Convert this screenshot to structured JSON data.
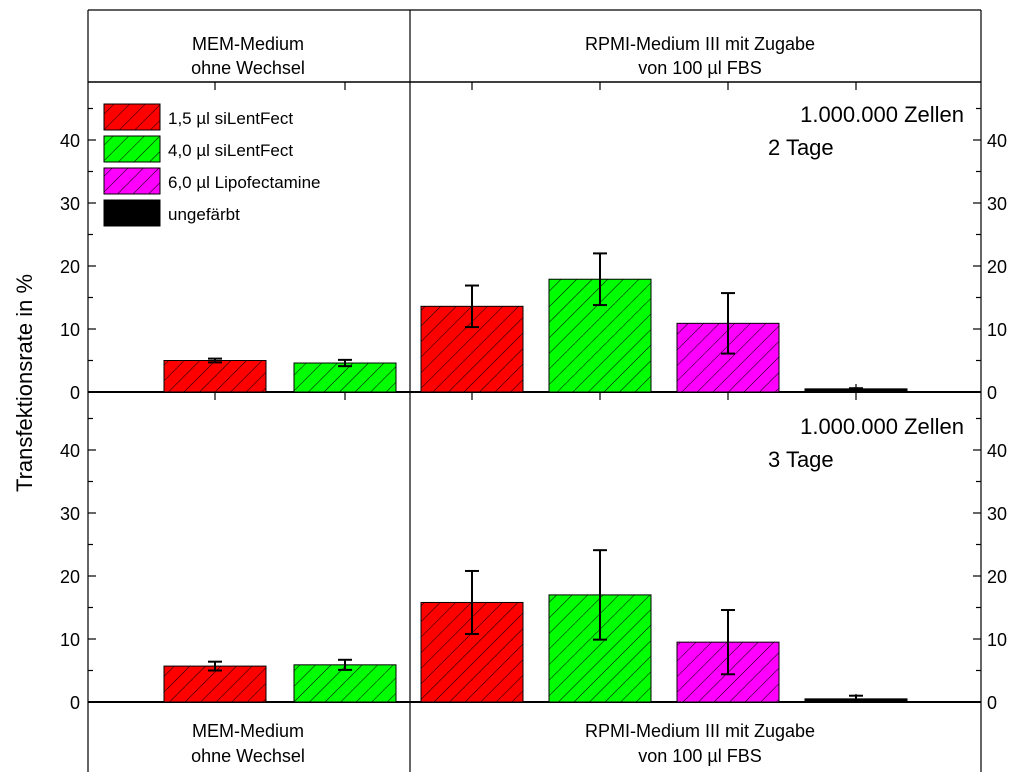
{
  "colors": {
    "red": "#ff0000",
    "green": "#00ff00",
    "magenta": "#ff00ff",
    "black": "#000000",
    "axis": "#000000"
  },
  "headers": {
    "left": [
      "MEM-Medium",
      "ohne Wechsel"
    ],
    "right": [
      "RPMI-Medium III mit Zugabe",
      "von 100 µl FBS"
    ]
  },
  "chart_data": {
    "type": "bar",
    "ylabel": "Transfektionsrate in %",
    "ylim": [
      0,
      48
    ],
    "yticks": [
      "0",
      "10",
      "20",
      "30",
      "40"
    ],
    "legend_position": "top-left",
    "hatch": "diagonal",
    "error_bars": true,
    "series": [
      {
        "name": "1,5 µl siLentFect",
        "color": "#ff0000"
      },
      {
        "name": "4,0 µl siLentFect",
        "color": "#00ff00"
      },
      {
        "name": "6,0 µl Lipofectamine",
        "color": "#ff00ff"
      },
      {
        "name": "ungefärbt",
        "color": "#000000"
      }
    ],
    "panels": [
      {
        "annotation": [
          "1.000.000 Zellen",
          "2 Tage"
        ],
        "bars": [
          {
            "group": "MEM-Medium ohne Wechsel",
            "series": "1,5 µl siLentFect",
            "value": 5.0,
            "error": 0.3
          },
          {
            "group": "MEM-Medium ohne Wechsel",
            "series": "4,0 µl siLentFect",
            "value": 4.6,
            "error": 0.5
          },
          {
            "group": "RPMI-Medium III mit Zugabe von 100 µl FBS",
            "series": "1,5 µl siLentFect",
            "value": 13.6,
            "error": 3.3
          },
          {
            "group": "RPMI-Medium III mit Zugabe von 100 µl FBS",
            "series": "4,0 µl siLentFect",
            "value": 17.9,
            "error": 4.1
          },
          {
            "group": "RPMI-Medium III mit Zugabe von 100 µl FBS",
            "series": "6,0 µl Lipofectamine",
            "value": 10.9,
            "error": 4.8
          },
          {
            "group": "RPMI-Medium III mit Zugabe von 100 µl FBS",
            "series": "ungefärbt",
            "value": 0.5,
            "error": 0.1
          }
        ]
      },
      {
        "annotation": [
          "1.000.000 Zellen",
          "3 Tage"
        ],
        "bars": [
          {
            "group": "MEM-Medium ohne Wechsel",
            "series": "1,5 µl siLentFect",
            "value": 5.7,
            "error": 0.7
          },
          {
            "group": "MEM-Medium ohne Wechsel",
            "series": "4,0 µl siLentFect",
            "value": 5.9,
            "error": 0.8
          },
          {
            "group": "RPMI-Medium III mit Zugabe von 100 µl FBS",
            "series": "1,5 µl siLentFect",
            "value": 15.8,
            "error": 5.0
          },
          {
            "group": "RPMI-Medium III mit Zugabe von 100 µl FBS",
            "series": "4,0 µl siLentFect",
            "value": 17.0,
            "error": 7.1
          },
          {
            "group": "RPMI-Medium III mit Zugabe von 100 µl FBS",
            "series": "6,0 µl Lipofectamine",
            "value": 9.5,
            "error": 5.1
          },
          {
            "group": "RPMI-Medium III mit Zugabe von 100 µl FBS",
            "series": "ungefärbt",
            "value": 0.5,
            "error": 0.5
          }
        ]
      }
    ]
  }
}
